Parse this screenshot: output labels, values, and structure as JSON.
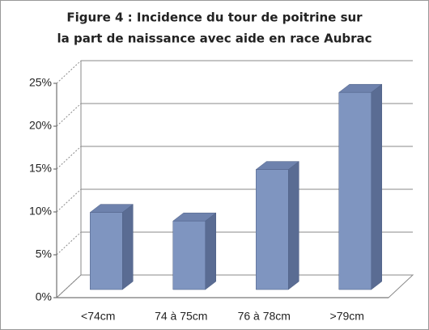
{
  "chart_data": {
    "type": "bar3d",
    "title": [
      "Figure 4 : Incidence du tour de poitrine sur",
      "la part  de naissance avec aide en race Aubrac"
    ],
    "categories": [
      "<74cm",
      "74 à 75cm",
      "76 à 78cm",
      ">79cm"
    ],
    "values": [
      9,
      8,
      14,
      23
    ],
    "color": "#7f95c0",
    "ylim": [
      0,
      25
    ],
    "yticks": [
      {
        "value": 0,
        "label": "0%"
      },
      {
        "value": 5,
        "label": "5%"
      },
      {
        "value": 10,
        "label": "10%"
      },
      {
        "value": 15,
        "label": "15%"
      },
      {
        "value": 20,
        "label": "20%"
      },
      {
        "value": 25,
        "label": "25%"
      }
    ],
    "grid": true
  }
}
